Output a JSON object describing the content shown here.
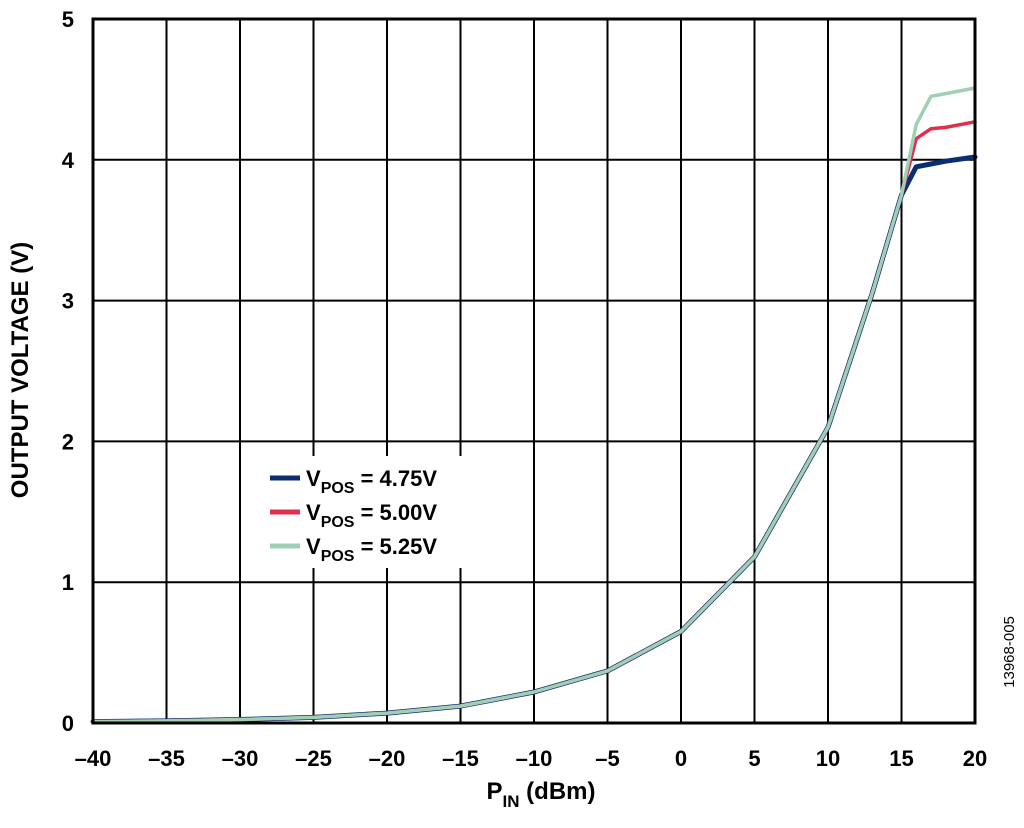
{
  "chart_data": {
    "type": "line",
    "title": "",
    "xlabel": {
      "main": "P",
      "sub": "IN",
      "rest": " (dBm)"
    },
    "ylabel": "OUTPUT VOLTAGE (V)",
    "xlim": [
      -40,
      20
    ],
    "ylim": [
      0,
      5
    ],
    "xticks": [
      -40,
      -35,
      -30,
      -25,
      -20,
      -15,
      -10,
      -5,
      0,
      5,
      10,
      15,
      20
    ],
    "xtick_labels": [
      "–40",
      "–35",
      "–30",
      "–25",
      "–20",
      "–15",
      "–10",
      "–5",
      "0",
      "5",
      "10",
      "15",
      "20"
    ],
    "yticks": [
      0,
      1,
      2,
      3,
      4,
      5
    ],
    "ytick_labels": [
      "0",
      "1",
      "2",
      "3",
      "4",
      "5"
    ],
    "grid": true,
    "legend_position": "center-left",
    "series": [
      {
        "name": "VPOS = 4.75V",
        "legend": {
          "main": "V",
          "sub": "POS",
          "rest": " = 4.75V"
        },
        "color": "#0b2d72",
        "x": [
          -40,
          -35,
          -30,
          -25,
          -20,
          -15,
          -10,
          -5,
          0,
          5,
          10,
          13,
          15,
          16,
          17,
          18,
          20
        ],
        "y": [
          0.01,
          0.015,
          0.025,
          0.04,
          0.07,
          0.12,
          0.22,
          0.37,
          0.65,
          1.18,
          2.1,
          3.05,
          3.75,
          3.95,
          3.97,
          3.99,
          4.02
        ]
      },
      {
        "name": "VPOS = 5.00V",
        "legend": {
          "main": "V",
          "sub": "POS",
          "rest": " = 5.00V"
        },
        "color": "#e0304e",
        "x": [
          -40,
          -35,
          -30,
          -25,
          -20,
          -15,
          -10,
          -5,
          0,
          5,
          10,
          13,
          15,
          16,
          17,
          18,
          20
        ],
        "y": [
          0.01,
          0.015,
          0.025,
          0.04,
          0.07,
          0.12,
          0.22,
          0.37,
          0.65,
          1.18,
          2.1,
          3.05,
          3.75,
          4.15,
          4.22,
          4.23,
          4.27
        ]
      },
      {
        "name": "VPOS = 5.25V",
        "legend": {
          "main": "V",
          "sub": "POS",
          "rest": " = 5.25V"
        },
        "color": "#9fd0b5",
        "x": [
          -40,
          -35,
          -30,
          -25,
          -20,
          -15,
          -10,
          -5,
          0,
          5,
          10,
          13,
          15,
          16,
          17,
          18,
          20
        ],
        "y": [
          0.01,
          0.015,
          0.025,
          0.04,
          0.07,
          0.12,
          0.22,
          0.37,
          0.65,
          1.18,
          2.1,
          3.05,
          3.75,
          4.25,
          4.45,
          4.47,
          4.51
        ]
      }
    ]
  },
  "figure_id": "13968-005"
}
